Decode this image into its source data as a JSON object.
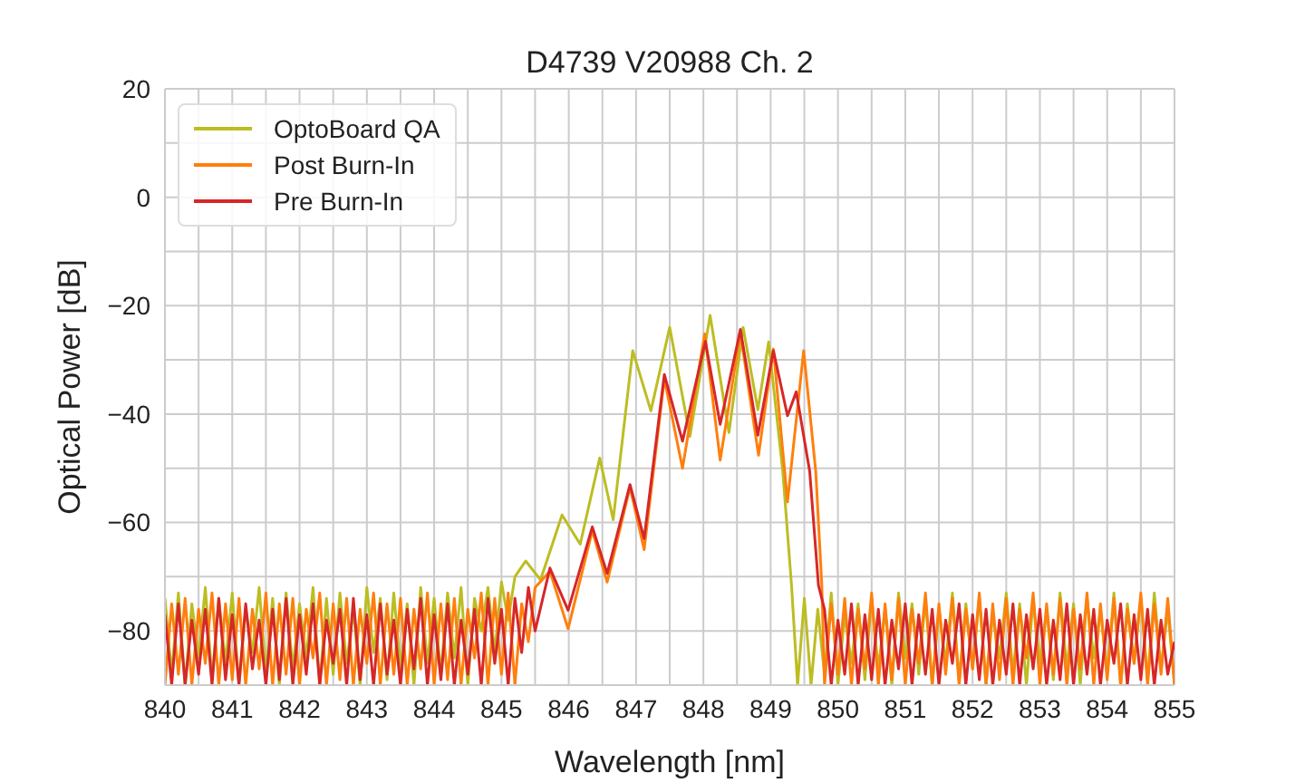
{
  "chart_data": {
    "type": "line",
    "title": "D4739 V20988 Ch. 2",
    "xlabel": "Wavelength [nm]",
    "ylabel": "Optical Power [dB]",
    "xlim": [
      840,
      855
    ],
    "ylim": [
      -90,
      20
    ],
    "xticks": [
      840,
      {
        "value": 840.5,
        "label": null
      },
      841,
      {
        "value": 841.5,
        "label": null
      },
      842,
      {
        "value": 842.5,
        "label": null
      },
      843,
      {
        "value": 843.5,
        "label": null
      },
      844,
      {
        "value": 844.5,
        "label": null
      },
      845,
      {
        "value": 845.5,
        "label": null
      },
      846,
      {
        "value": 846.5,
        "label": null
      },
      847,
      {
        "value": 847.5,
        "label": null
      },
      848,
      {
        "value": 848.5,
        "label": null
      },
      849,
      {
        "value": 849.5,
        "label": null
      },
      850,
      {
        "value": 850.5,
        "label": null
      },
      851,
      {
        "value": 851.5,
        "label": null
      },
      852,
      {
        "value": 852.5,
        "label": null
      },
      853,
      {
        "value": 853.5,
        "label": null
      },
      854,
      {
        "value": 854.5,
        "label": null
      },
      855
    ],
    "yticks": [
      {
        "value": -90,
        "label": null
      },
      -80,
      {
        "value": -70,
        "label": null
      },
      -60,
      {
        "value": -50,
        "label": null
      },
      -40,
      {
        "value": -30,
        "label": null
      },
      -20,
      {
        "value": -10,
        "label": null
      },
      0,
      {
        "value": 10,
        "label": null
      },
      20
    ],
    "grid": true,
    "legend": "top left",
    "marker": "none",
    "line_style": "solid",
    "series": [
      {
        "name": "OptoBoard QA",
        "color": "#bcbd22",
        "x": [
          840,
          840.1,
          840.2,
          840.3,
          840.4,
          840.5,
          840.6,
          840.7,
          840.8,
          840.9,
          841,
          841.1,
          841.2,
          841.3,
          841.4,
          841.5,
          841.6,
          841.7,
          841.8,
          841.9,
          842,
          842.1,
          842.2,
          842.3,
          842.4,
          842.5,
          842.6,
          842.7,
          842.8,
          842.9,
          843,
          843.1,
          843.2,
          843.3,
          843.4,
          843.5,
          843.6,
          843.7,
          843.8,
          843.9,
          844,
          844.1,
          844.2,
          844.3,
          844.4,
          844.5,
          844.6,
          844.7,
          844.8,
          844.9,
          845,
          845.1,
          845.2,
          845.36,
          845.58,
          845.9,
          846.17,
          846.46,
          846.66,
          846.95,
          847.22,
          847.5,
          847.8,
          848.1,
          848.38,
          848.59,
          848.81,
          848.97,
          849.18,
          849.31,
          849.4,
          849.5,
          849.6,
          849.7,
          849.8,
          849.9,
          850,
          850.1,
          850.2,
          850.3,
          850.4,
          850.5,
          850.6,
          850.7,
          850.8,
          850.9,
          851,
          851.1,
          851.2,
          851.3,
          851.4,
          851.5,
          851.6,
          851.7,
          851.8,
          851.9,
          852,
          852.1,
          852.2,
          852.3,
          852.4,
          852.5,
          852.6,
          852.7,
          852.8,
          852.9,
          853,
          853.1,
          853.2,
          853.3,
          853.4,
          853.5,
          853.6,
          853.7,
          853.8,
          853.9,
          854,
          854.1,
          854.2,
          854.3,
          854.4,
          854.5,
          854.6,
          854.7,
          854.8,
          854.9,
          855
        ],
        "values": [
          -74,
          -88,
          -73,
          -90,
          -75,
          -85,
          -72,
          -89,
          -74,
          -86,
          -73,
          -90,
          -76,
          -84,
          -72,
          -88,
          -74,
          -90,
          -73,
          -87,
          -75,
          -85,
          -72,
          -90,
          -74,
          -88,
          -73,
          -86,
          -76,
          -90,
          -72,
          -84,
          -74,
          -89,
          -73,
          -87,
          -75,
          -90,
          -72,
          -86,
          -74,
          -88,
          -73,
          -85,
          -72,
          -90,
          -74,
          -80,
          -72,
          -84,
          -71,
          -78,
          -70,
          -67.1,
          -70.6,
          -58.6,
          -64,
          -48.1,
          -59.5,
          -28.3,
          -39.4,
          -24,
          -44.1,
          -21.8,
          -43.4,
          -24,
          -39.2,
          -26.7,
          -50.6,
          -71.6,
          -90,
          -74,
          -90,
          -76,
          -88,
          -73,
          -90,
          -77,
          -86,
          -75,
          -89,
          -74,
          -87,
          -76,
          -90,
          -73,
          -85,
          -75,
          -88,
          -74,
          -90,
          -76,
          -86,
          -73,
          -89,
          -75,
          -87,
          -74,
          -90,
          -77,
          -85,
          -73,
          -88,
          -75,
          -90,
          -74,
          -86,
          -76,
          -89,
          -73,
          -87,
          -75,
          -90,
          -74,
          -85,
          -76,
          -88,
          -73,
          -90,
          -75,
          -86,
          -74,
          -89,
          -73,
          -87,
          -76,
          -90
        ]
      },
      {
        "name": "Post Burn-In",
        "color": "#ff7f0e",
        "x": [
          840,
          840.1,
          840.2,
          840.3,
          840.4,
          840.5,
          840.6,
          840.7,
          840.8,
          840.9,
          841,
          841.1,
          841.2,
          841.3,
          841.4,
          841.5,
          841.6,
          841.7,
          841.8,
          841.9,
          842,
          842.1,
          842.2,
          842.3,
          842.4,
          842.5,
          842.6,
          842.7,
          842.8,
          842.9,
          843,
          843.1,
          843.2,
          843.3,
          843.4,
          843.5,
          843.6,
          843.7,
          843.8,
          843.9,
          844,
          844.1,
          844.2,
          844.3,
          844.4,
          844.5,
          844.6,
          844.7,
          844.8,
          844.9,
          845,
          845.1,
          845.2,
          845.3,
          845.4,
          845.5,
          845.72,
          845.99,
          846.35,
          846.57,
          846.91,
          847.12,
          847.42,
          847.69,
          848.02,
          848.25,
          848.55,
          848.82,
          849.04,
          849.25,
          849.49,
          849.67,
          849.76,
          849.8,
          849.9,
          850,
          850.1,
          850.2,
          850.3,
          850.4,
          850.5,
          850.6,
          850.7,
          850.8,
          850.9,
          851,
          851.1,
          851.2,
          851.3,
          851.4,
          851.5,
          851.6,
          851.7,
          851.8,
          851.9,
          852,
          852.1,
          852.2,
          852.3,
          852.4,
          852.5,
          852.6,
          852.7,
          852.8,
          852.9,
          853,
          853.1,
          853.2,
          853.3,
          853.4,
          853.5,
          853.6,
          853.7,
          853.8,
          853.9,
          854,
          854.1,
          854.2,
          854.3,
          854.4,
          854.5,
          854.6,
          854.7,
          854.8,
          854.9,
          855
        ],
        "values": [
          -90,
          -75,
          -88,
          -74,
          -90,
          -76,
          -86,
          -73,
          -90,
          -75,
          -89,
          -74,
          -90,
          -76,
          -87,
          -73,
          -90,
          -75,
          -88,
          -74,
          -90,
          -76,
          -85,
          -73,
          -90,
          -75,
          -89,
          -74,
          -90,
          -76,
          -86,
          -73,
          -90,
          -75,
          -88,
          -74,
          -90,
          -76,
          -87,
          -73,
          -90,
          -75,
          -89,
          -74,
          -90,
          -76,
          -85,
          -73,
          -90,
          -74,
          -88,
          -73,
          -90,
          -75,
          -82,
          -72,
          -69,
          -79.6,
          -61.5,
          -71,
          -53.5,
          -65,
          -33.5,
          -50,
          -25.2,
          -48.5,
          -25,
          -47.6,
          -28,
          -56.2,
          -28.3,
          -50.6,
          -71.6,
          -90,
          -75,
          -88,
          -74,
          -90,
          -76,
          -87,
          -73,
          -90,
          -75,
          -89,
          -74,
          -90,
          -76,
          -86,
          -73,
          -90,
          -75,
          -88,
          -74,
          -90,
          -76,
          -87,
          -73,
          -90,
          -75,
          -89,
          -74,
          -90,
          -76,
          -85,
          -73,
          -90,
          -75,
          -88,
          -74,
          -90,
          -76,
          -87,
          -73,
          -90,
          -75,
          -89,
          -74,
          -90,
          -76,
          -86,
          -73,
          -90,
          -75,
          -88,
          -74,
          -90
        ]
      },
      {
        "name": "Pre Burn-In",
        "color": "#d62728",
        "x": [
          840,
          840.1,
          840.2,
          840.3,
          840.4,
          840.5,
          840.6,
          840.7,
          840.8,
          840.9,
          841,
          841.1,
          841.2,
          841.3,
          841.4,
          841.5,
          841.6,
          841.7,
          841.8,
          841.9,
          842,
          842.1,
          842.2,
          842.3,
          842.4,
          842.5,
          842.6,
          842.7,
          842.8,
          842.9,
          843,
          843.1,
          843.2,
          843.3,
          843.4,
          843.5,
          843.6,
          843.7,
          843.8,
          843.9,
          844,
          844.1,
          844.2,
          844.3,
          844.4,
          844.5,
          844.6,
          844.7,
          844.8,
          844.9,
          845,
          845.1,
          845.2,
          845.3,
          845.4,
          845.5,
          845.72,
          845.99,
          846.35,
          846.57,
          846.91,
          847.12,
          847.42,
          847.69,
          848.03,
          848.25,
          848.55,
          848.81,
          849.04,
          849.25,
          849.38,
          849.58,
          849.71,
          849.8,
          849.9,
          850,
          850.1,
          850.2,
          850.3,
          850.4,
          850.5,
          850.6,
          850.7,
          850.8,
          850.9,
          851,
          851.1,
          851.2,
          851.3,
          851.4,
          851.5,
          851.6,
          851.7,
          851.8,
          851.9,
          852,
          852.1,
          852.2,
          852.3,
          852.4,
          852.5,
          852.6,
          852.7,
          852.8,
          852.9,
          853,
          853.1,
          853.2,
          853.3,
          853.4,
          853.5,
          853.6,
          853.7,
          853.8,
          853.9,
          854,
          854.1,
          854.2,
          854.3,
          854.4,
          854.5,
          854.6,
          854.7,
          854.8,
          854.9,
          855
        ],
        "values": [
          -77,
          -90,
          -75,
          -90,
          -78,
          -88,
          -76,
          -90,
          -74,
          -89,
          -77,
          -90,
          -75,
          -87,
          -78,
          -90,
          -76,
          -89,
          -74,
          -90,
          -77,
          -88,
          -75,
          -90,
          -78,
          -86,
          -76,
          -90,
          -74,
          -89,
          -77,
          -90,
          -75,
          -88,
          -78,
          -90,
          -76,
          -87,
          -74,
          -90,
          -77,
          -89,
          -75,
          -90,
          -78,
          -88,
          -76,
          -90,
          -74,
          -86,
          -76,
          -90,
          -74,
          -84,
          -72,
          -80,
          -68.4,
          -76.2,
          -60.8,
          -69.4,
          -53,
          -63,
          -32.7,
          -45,
          -26.6,
          -41.9,
          -24.4,
          -43.9,
          -28.3,
          -40.3,
          -35.9,
          -50.6,
          -71.6,
          -76,
          -90,
          -78,
          -88,
          -75,
          -90,
          -77,
          -89,
          -76,
          -90,
          -78,
          -87,
          -75,
          -90,
          -77,
          -88,
          -76,
          -90,
          -78,
          -86,
          -75,
          -90,
          -77,
          -89,
          -76,
          -90,
          -78,
          -88,
          -75,
          -90,
          -77,
          -87,
          -76,
          -90,
          -78,
          -89,
          -75,
          -90,
          -77,
          -88,
          -76,
          -90,
          -78,
          -86,
          -75,
          -90,
          -77,
          -89,
          -76,
          -90,
          -78,
          -88,
          -82
        ]
      }
    ]
  }
}
